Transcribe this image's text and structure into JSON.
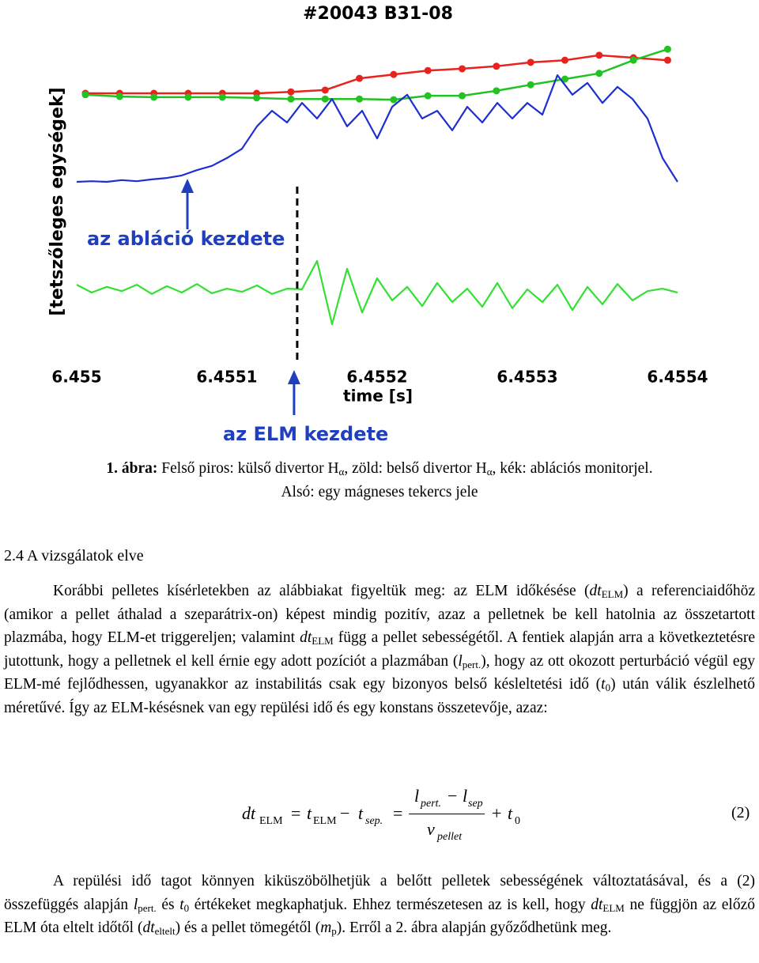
{
  "chart_data": {
    "type": "line",
    "title": "#20043 B31-08",
    "x_label": "time [s]",
    "y_label": "[tetszőleges egységek]",
    "xlim": [
      6.455,
      6.4554
    ],
    "xticks": [
      6.455,
      6.4551,
      6.4552,
      6.4553,
      6.4554
    ],
    "ylim": [
      0,
      100
    ],
    "x": [
      6.455,
      6.45501,
      6.45502,
      6.45503,
      6.45504,
      6.45505,
      6.45506,
      6.45507,
      6.45508,
      6.45509,
      6.4551,
      6.45511,
      6.45512,
      6.45513,
      6.45514,
      6.45515,
      6.45516,
      6.45517,
      6.45518,
      6.45519,
      6.4552,
      6.45521,
      6.45522,
      6.45523,
      6.45524,
      6.45525,
      6.45526,
      6.45527,
      6.45528,
      6.45529,
      6.4553,
      6.45531,
      6.45532,
      6.45533,
      6.45534,
      6.45535,
      6.45536,
      6.45537,
      6.45538,
      6.45539,
      6.4554
    ],
    "series": [
      {
        "color": "#e8231d",
        "marker": true,
        "x": [
          6.4550058,
          6.4550286,
          6.4550514,
          6.4550742,
          6.455097,
          6.4551198,
          6.4551426,
          6.4551654,
          6.4551882,
          6.455211,
          6.4552338,
          6.4552566,
          6.4552794,
          6.4553022,
          6.455325,
          6.4553478,
          6.4553706,
          6.4553934
        ],
        "values": [
          76,
          76,
          76,
          76,
          76,
          76,
          76.4,
          76.9,
          80.2,
          81.3,
          82.4,
          82.9,
          83.6,
          84.7,
          85.3,
          86.7,
          86,
          85.3
        ]
      },
      {
        "color": "#22c222",
        "marker": true,
        "x": [
          6.4550058,
          6.4550286,
          6.4550514,
          6.4550742,
          6.455097,
          6.4551198,
          6.4551426,
          6.4551654,
          6.4551882,
          6.455211,
          6.4552338,
          6.4552566,
          6.4552794,
          6.4553022,
          6.455325,
          6.4553478,
          6.4553706,
          6.4553934
        ],
        "values": [
          75.6,
          75.1,
          74.9,
          74.9,
          74.9,
          74.7,
          74.4,
          74.4,
          74.4,
          74.2,
          75.3,
          75.3,
          76.7,
          78.4,
          80,
          81.6,
          85.3,
          88.4
        ]
      },
      {
        "color": "#1c2fd0",
        "marker": false,
        "values": [
          51.1,
          51.3,
          51.1,
          51.6,
          51.3,
          51.8,
          52.2,
          52.9,
          54.4,
          55.6,
          57.8,
          60.4,
          66.7,
          71.1,
          67.8,
          73.3,
          68.9,
          74.4,
          66.7,
          71.1,
          63.3,
          72.2,
          75.6,
          68.9,
          71.1,
          65.6,
          72.2,
          67.8,
          73.3,
          68.9,
          73.3,
          70,
          81.1,
          75.6,
          78.9,
          73.3,
          77.8,
          74.4,
          68.9,
          57.8,
          51.1
        ]
      },
      {
        "color": "#33e033",
        "marker": false,
        "values": [
          22.2,
          20,
          21.6,
          20.4,
          22.2,
          19.6,
          21.8,
          20,
          22.4,
          19.8,
          21.1,
          20.2,
          22,
          19.6,
          21.1,
          20.9,
          28.9,
          11.1,
          26.7,
          14.4,
          24,
          17.8,
          21.6,
          16.2,
          22.7,
          17.3,
          21.1,
          16,
          22.7,
          15.6,
          20.9,
          17.3,
          22.2,
          15.1,
          21.6,
          16.7,
          22.4,
          17.8,
          20.4,
          21.1,
          20
        ]
      }
    ],
    "annotations": [
      {
        "text": "az abláció kezdete",
        "x": 6.4550737
      },
      {
        "text": "az ELM kezdete",
        "x": 6.4551468
      }
    ]
  },
  "caption": {
    "lines": [
      [
        {
          "b": "1. ábra:"
        },
        " Felső piros: külső divertor H",
        {
          "sub": "α"
        },
        ", zöld: belső divertor H",
        {
          "sub": "α"
        },
        ", kék: ablációs monitorjel."
      ],
      [
        "Alsó: egy  mágneses tekercs jele"
      ]
    ]
  },
  "heading": "2.4 A vizsgálatok elve",
  "paragraphs": [
    [
      "Korábbi pelletes kísérletekben az alábbiakat figyeltük meg: az ELM időkésése (",
      {
        "i": "dt"
      },
      {
        "sub": "ELM"
      },
      ") a referenciaidőhöz (amikor a pellet áthalad a szeparátrix-on) képest mindig pozitív, azaz a pelletnek be kell hatolnia az összetartott plazmába, hogy ELM-et triggereljen; valamint ",
      {
        "i": "dt"
      },
      {
        "sub": "ELM"
      },
      " függ a pellet sebességétől. A fentiek alapján arra a következtetésre jutottunk, hogy a pelletnek el kell érnie egy adott pozíciót a plazmában (",
      {
        "i": "l"
      },
      {
        "sub": "pert."
      },
      "), hogy az ott okozott perturbáció végül egy ELM-mé fejlődhessen, ugyanakkor az instabilitás csak egy bizonyos belső késleltetési idő (",
      {
        "i": "t"
      },
      {
        "sub": "0"
      },
      ") után válik észlelhető méretűvé. Így az ELM-késésnek van egy repülési idő és egy konstans összetevője, azaz:"
    ],
    [
      "A repülési idő tagot könnyen kiküszöbölhetjük a belőtt pelletek sebességének változtatásával, és a (2) összefüggés alapján ",
      {
        "i": "l"
      },
      {
        "sub": "pert."
      },
      " és ",
      {
        "i": "t"
      },
      {
        "sub": "0"
      },
      " értékeket megkaphatjuk. Ehhez természetesen az is kell, hogy ",
      {
        "i": "dt"
      },
      {
        "sub": "ELM"
      },
      " ne függjön az előző ELM óta eltelt időtől (",
      {
        "i": "dt"
      },
      {
        "sub": "eltelt"
      },
      ") és a pellet tömegétől (",
      {
        "i": "m"
      },
      {
        "sub": "p"
      },
      "). Erről a 2. ábra alapján győződhetünk meg."
    ]
  ],
  "equation": {
    "parts": [
      "dt",
      "ELM",
      "=",
      "t",
      "ELM",
      "−",
      "t",
      "sep.",
      "=",
      "l",
      "pert.",
      "−",
      "l",
      "sep",
      "v",
      "pellet",
      "+",
      "t",
      "0",
      "(2)"
    ]
  }
}
